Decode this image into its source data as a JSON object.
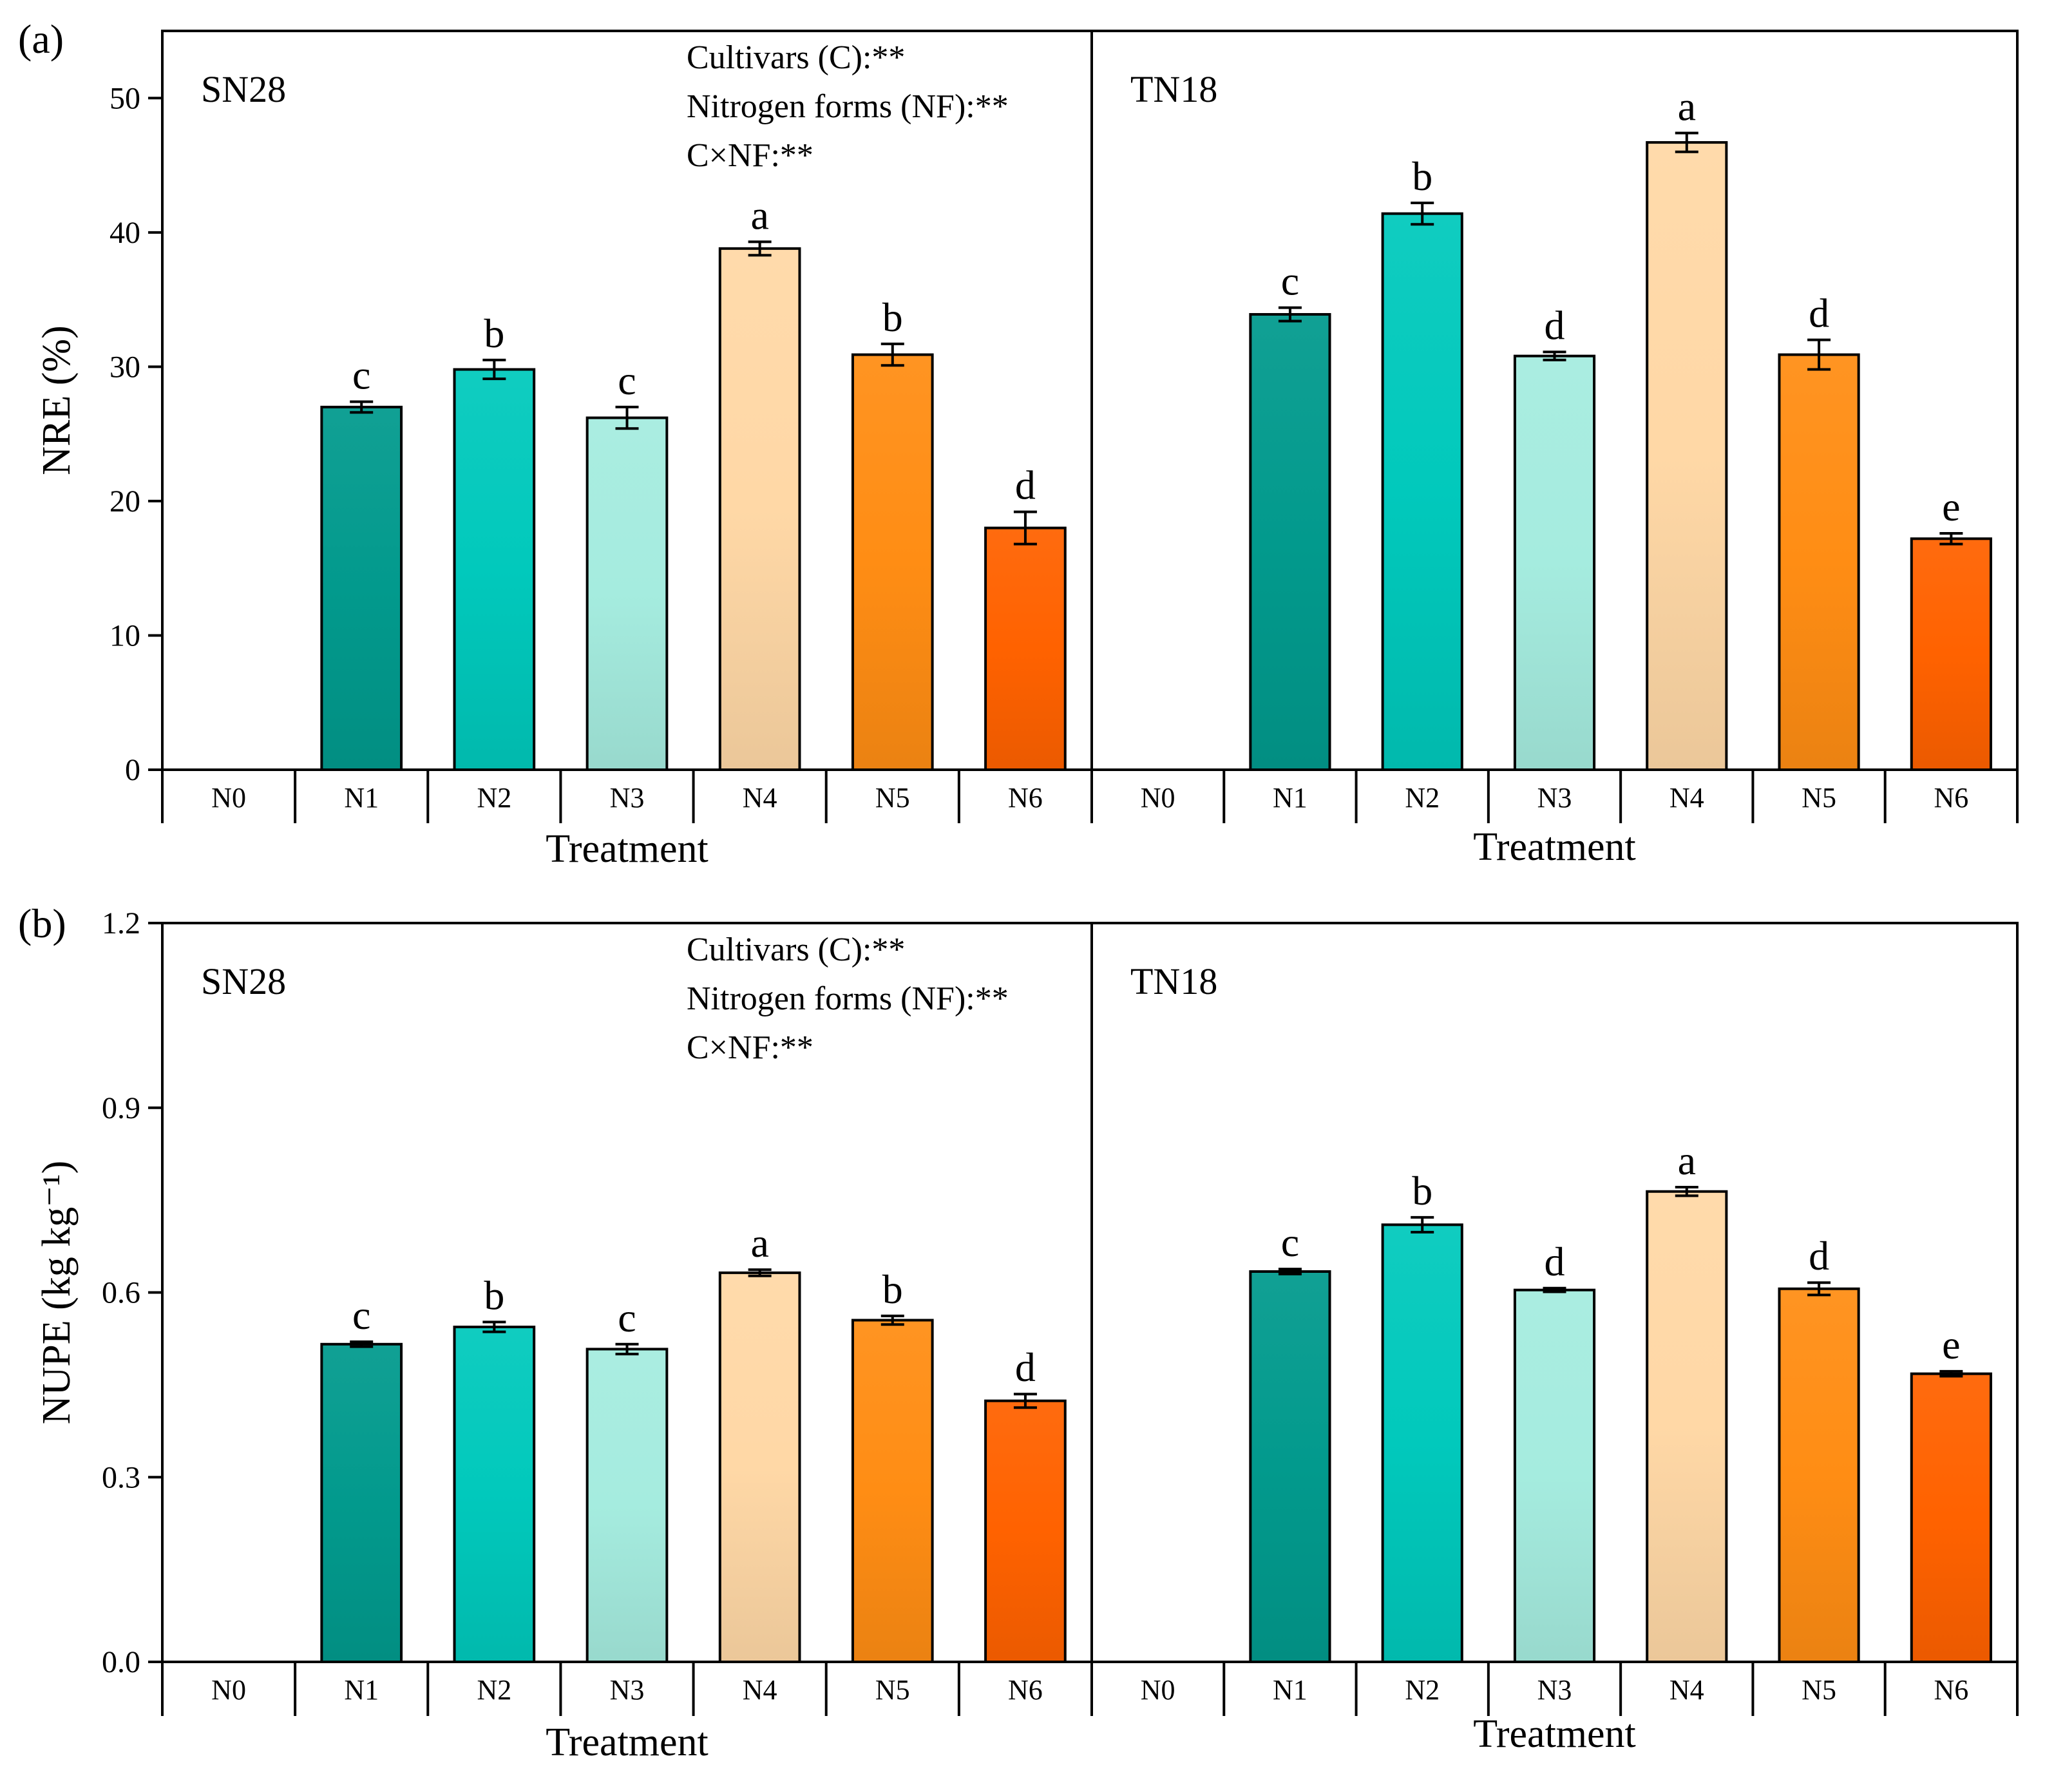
{
  "chart_data": [
    {
      "type": "bar",
      "panel_label": "(a)",
      "ylabel": "NRE (%)",
      "xlabel": "Treatment",
      "ylim": [
        0,
        55
      ],
      "yticks": [
        "0",
        "10",
        "20",
        "30",
        "40",
        "50"
      ],
      "ytick_values": [
        0,
        10,
        20,
        30,
        40,
        50
      ],
      "categories": [
        "N0",
        "N1",
        "N2",
        "N3",
        "N4",
        "N5",
        "N6"
      ],
      "stats": [
        "Cultivars (C):**",
        "Nitrogen forms (NF):**",
        "C×NF:**"
      ],
      "groups": [
        {
          "name": "SN28",
          "values": [
            0,
            27.0,
            29.8,
            26.2,
            38.8,
            30.9,
            18.0
          ],
          "errors": [
            0,
            0.4,
            0.7,
            0.8,
            0.5,
            0.8,
            1.2
          ],
          "letters": [
            "",
            "c",
            "b",
            "c",
            "a",
            "b",
            "d"
          ]
        },
        {
          "name": "TN18",
          "values": [
            0,
            33.9,
            41.4,
            30.8,
            46.7,
            30.9,
            17.2
          ],
          "errors": [
            0,
            0.5,
            0.8,
            0.3,
            0.7,
            1.1,
            0.4
          ],
          "letters": [
            "",
            "c",
            "b",
            "d",
            "a",
            "d",
            "e"
          ]
        }
      ]
    },
    {
      "type": "bar",
      "panel_label": "(b)",
      "ylabel": "NUPE (kg kg⁻¹)",
      "xlabel": "Treatment",
      "ylim": [
        0,
        1.2
      ],
      "yticks": [
        "0.0",
        "0.3",
        "0.6",
        "0.9",
        "1.2"
      ],
      "ytick_values": [
        0,
        0.3,
        0.6,
        0.9,
        1.2
      ],
      "categories": [
        "N0",
        "N1",
        "N2",
        "N3",
        "N4",
        "N5",
        "N6"
      ],
      "stats": [
        "Cultivars (C):**",
        "Nitrogen forms (NF):**",
        "C×NF:**"
      ],
      "groups": [
        {
          "name": "SN28",
          "values": [
            0,
            0.516,
            0.544,
            0.508,
            0.632,
            0.555,
            0.424
          ],
          "errors": [
            0,
            0.004,
            0.008,
            0.008,
            0.005,
            0.007,
            0.011
          ],
          "letters": [
            "",
            "c",
            "b",
            "c",
            "a",
            "b",
            "d"
          ]
        },
        {
          "name": "TN18",
          "values": [
            0,
            0.634,
            0.71,
            0.604,
            0.764,
            0.606,
            0.468
          ],
          "errors": [
            0,
            0.004,
            0.012,
            0.003,
            0.007,
            0.01,
            0.004
          ],
          "letters": [
            "",
            "c",
            "b",
            "d",
            "a",
            "d",
            "e"
          ]
        }
      ]
    }
  ],
  "colors": {
    "N1": "#029A8D",
    "N2": "#01C9BC",
    "N3": "#A5ECDF",
    "N4": "#FFD8A6",
    "N5": "#FF8D14",
    "N6": "#FF6200"
  }
}
